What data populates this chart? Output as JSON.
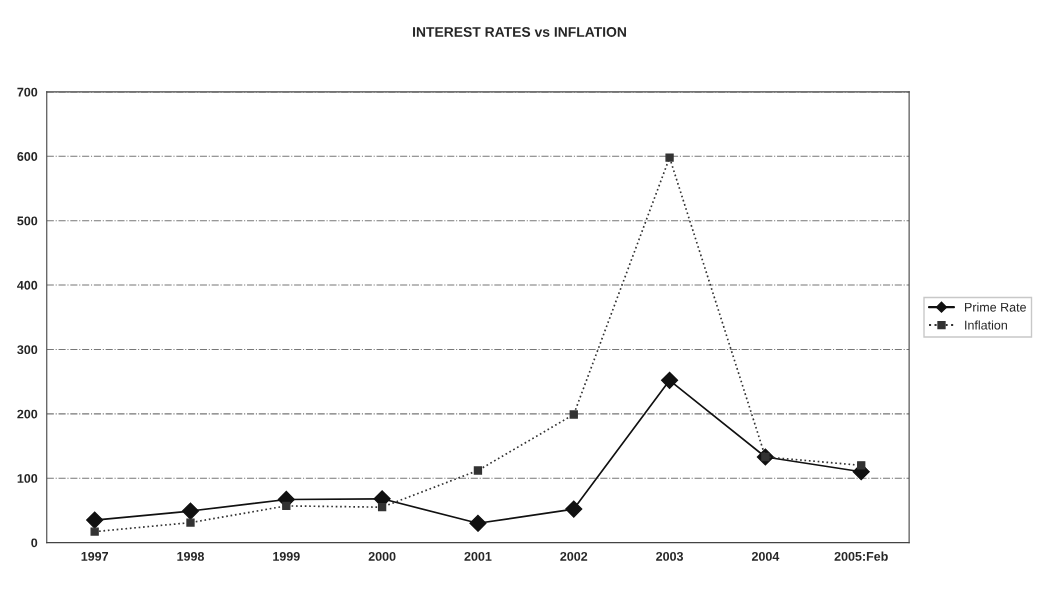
{
  "chart_data": {
    "type": "line",
    "title": "INTEREST RATES vs INFLATION",
    "categories": [
      "1997",
      "1998",
      "1999",
      "2000",
      "2001",
      "2002",
      "2003",
      "2004",
      "2005:Feb"
    ],
    "series": [
      {
        "name": "Prime Rate",
        "color": "#111111",
        "marker": "diamond",
        "line_style": "solid",
        "values": [
          35,
          49,
          67,
          68,
          30,
          52,
          252,
          133,
          110
        ]
      },
      {
        "name": "Inflation",
        "color": "#333333",
        "marker": "square",
        "line_style": "dotted",
        "values": [
          17,
          31,
          57,
          55,
          112,
          199,
          598,
          133,
          120
        ]
      }
    ],
    "ylim": [
      0,
      700
    ],
    "yticks": [
      0,
      100,
      200,
      300,
      400,
      500,
      600,
      700
    ],
    "grid": "y",
    "legend": "right"
  }
}
